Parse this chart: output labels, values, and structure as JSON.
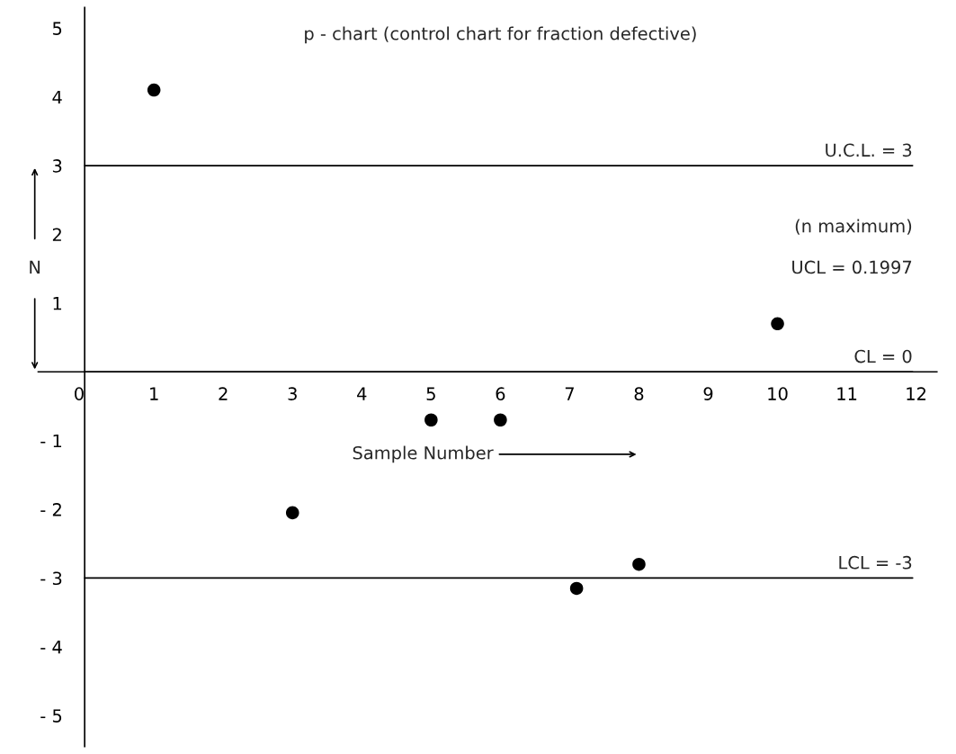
{
  "chart_data": {
    "type": "scatter",
    "title": "p - chart (control chart for fraction defective)",
    "xlabel": "Sample Number",
    "ylabel": "N",
    "x": [
      1,
      3,
      5,
      6,
      7.1,
      8,
      10
    ],
    "values": [
      4.1,
      -2.05,
      -0.7,
      -0.7,
      -3.15,
      -2.8,
      0.7
    ],
    "color": "#000000",
    "marker": "circle",
    "xlim": [
      -0.67,
      12.3
    ],
    "ylim": [
      -5.45,
      5.3
    ],
    "xticks": [
      0,
      1,
      2,
      3,
      4,
      5,
      6,
      7,
      8,
      9,
      10,
      11,
      12
    ],
    "yticks": [
      {
        "value": -5,
        "label": "- 5"
      },
      {
        "value": -4,
        "label": "- 4"
      },
      {
        "value": -3,
        "label": "- 3"
      },
      {
        "value": -2,
        "label": "- 2"
      },
      {
        "value": -1,
        "label": "- 1"
      },
      1,
      2,
      3,
      4,
      5
    ],
    "ref_lines": [
      {
        "axis": "y",
        "value": 3,
        "label": "U.C.L. = 3"
      },
      {
        "axis": "y",
        "value": 0,
        "label": "CL = 0"
      },
      {
        "axis": "y",
        "value": -3,
        "label": "LCL = -3"
      }
    ],
    "annotations": [
      "(n maximum)",
      "UCL = 0.1997"
    ],
    "grid": false
  }
}
